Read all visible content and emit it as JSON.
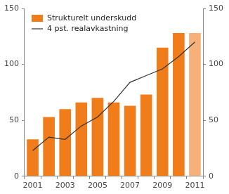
{
  "chart_data": {
    "type": "bar",
    "categories": [
      "2001",
      null,
      "2003",
      null,
      "2005",
      null,
      "2007",
      null,
      "2009",
      null,
      "2011"
    ],
    "series": [
      {
        "name": "Strukturelt underskudd",
        "type": "bar",
        "colors": [
          "#f07d1a",
          "#f07d1a",
          "#f07d1a",
          "#f07d1a",
          "#f07d1a",
          "#f07d1a",
          "#f07d1a",
          "#f07d1a",
          "#f07d1a",
          "#f07d1a",
          "#f6b07a"
        ],
        "values": [
          33,
          53,
          60,
          66,
          70,
          66,
          63,
          73,
          115,
          128,
          128
        ]
      },
      {
        "name": "4 pst. realavkastning",
        "type": "line",
        "color": "#333333",
        "axis": "y2",
        "values": [
          23,
          35,
          33,
          45,
          53,
          67,
          84,
          90,
          96,
          107,
          120
        ]
      }
    ],
    "ylim": [
      0,
      150
    ],
    "yticks": [
      0,
      50,
      100,
      150
    ],
    "y2lim": [
      0,
      150
    ],
    "y2ticks": [
      0,
      50,
      100,
      150
    ],
    "grid": false,
    "legend": "top-left"
  }
}
